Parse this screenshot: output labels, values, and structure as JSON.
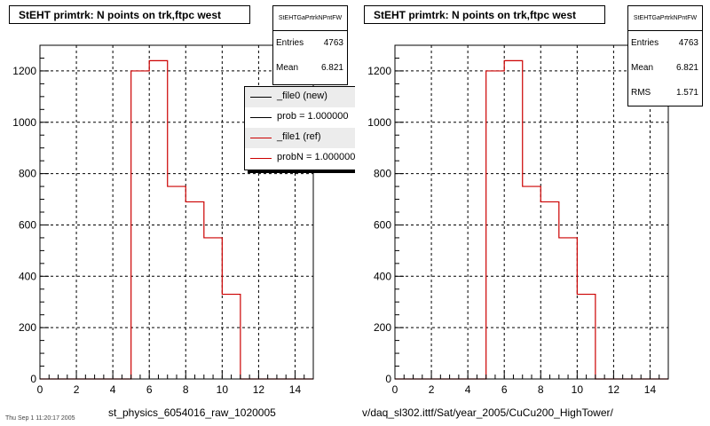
{
  "colors": {
    "ref_line": "#cc0000",
    "new_line": "#000000",
    "grid": "#000000",
    "frame": "#000000"
  },
  "chart_data": [
    {
      "type": "bar",
      "title": "StEHT primtrk: N points on trk,ftpc west",
      "xlabel": "st_physics_6054016_raw_1020005",
      "ylabel": "",
      "xlim": [
        0,
        15
      ],
      "ylim": [
        0,
        1300
      ],
      "xticks": [
        0,
        2,
        4,
        6,
        8,
        10,
        12,
        14
      ],
      "yticks": [
        0,
        200,
        400,
        600,
        800,
        1000,
        1200
      ],
      "grid": true,
      "bin_edges": [
        0,
        1,
        2,
        3,
        4,
        5,
        6,
        7,
        8,
        9,
        10,
        11,
        12,
        13,
        14,
        15
      ],
      "series": [
        {
          "name": "_file1 (ref)",
          "values": [
            0,
            0,
            0,
            0,
            0,
            1200,
            1240,
            750,
            690,
            550,
            330,
            0,
            0,
            0,
            0
          ]
        }
      ],
      "stats": {
        "name": "StEHTGaPrtrkNPntFW",
        "rows": [
          {
            "key": "Entries",
            "value": "4763"
          },
          {
            "key": "Mean",
            "value": "6.821"
          }
        ]
      },
      "legend": {
        "position": "right",
        "entries": [
          {
            "label": "_file0 (new)",
            "color": "#000000"
          },
          {
            "label": "prob = 1.000000",
            "color": "#000000"
          },
          {
            "label": "_file1 (ref)",
            "color": "#cc0000"
          },
          {
            "label": "probN = 1.000000",
            "color": "#cc0000"
          }
        ]
      }
    },
    {
      "type": "bar",
      "title": "StEHT primtrk: N points on trk,ftpc west",
      "xlabel": "v/daq_sl302.ittf/Sat/year_2005/CuCu200_HighTower/",
      "ylabel": "",
      "xlim": [
        0,
        15
      ],
      "ylim": [
        0,
        1300
      ],
      "xticks": [
        0,
        2,
        4,
        6,
        8,
        10,
        12,
        14
      ],
      "yticks": [
        0,
        200,
        400,
        600,
        800,
        1000,
        1200
      ],
      "grid": true,
      "bin_edges": [
        0,
        1,
        2,
        3,
        4,
        5,
        6,
        7,
        8,
        9,
        10,
        11,
        12,
        13,
        14,
        15
      ],
      "series": [
        {
          "name": "",
          "values": [
            0,
            0,
            0,
            0,
            0,
            1200,
            1240,
            750,
            690,
            550,
            330,
            0,
            0,
            0,
            0
          ]
        }
      ],
      "stats": {
        "name": "StEHTGaPrtrkNPntFW",
        "rows": [
          {
            "key": "Entries",
            "value": "4763"
          },
          {
            "key": "Mean",
            "value": "6.821"
          },
          {
            "key": "RMS",
            "value": "1.571"
          }
        ]
      }
    }
  ],
  "footer": "Thu Sep 1 11:20:17 2005"
}
